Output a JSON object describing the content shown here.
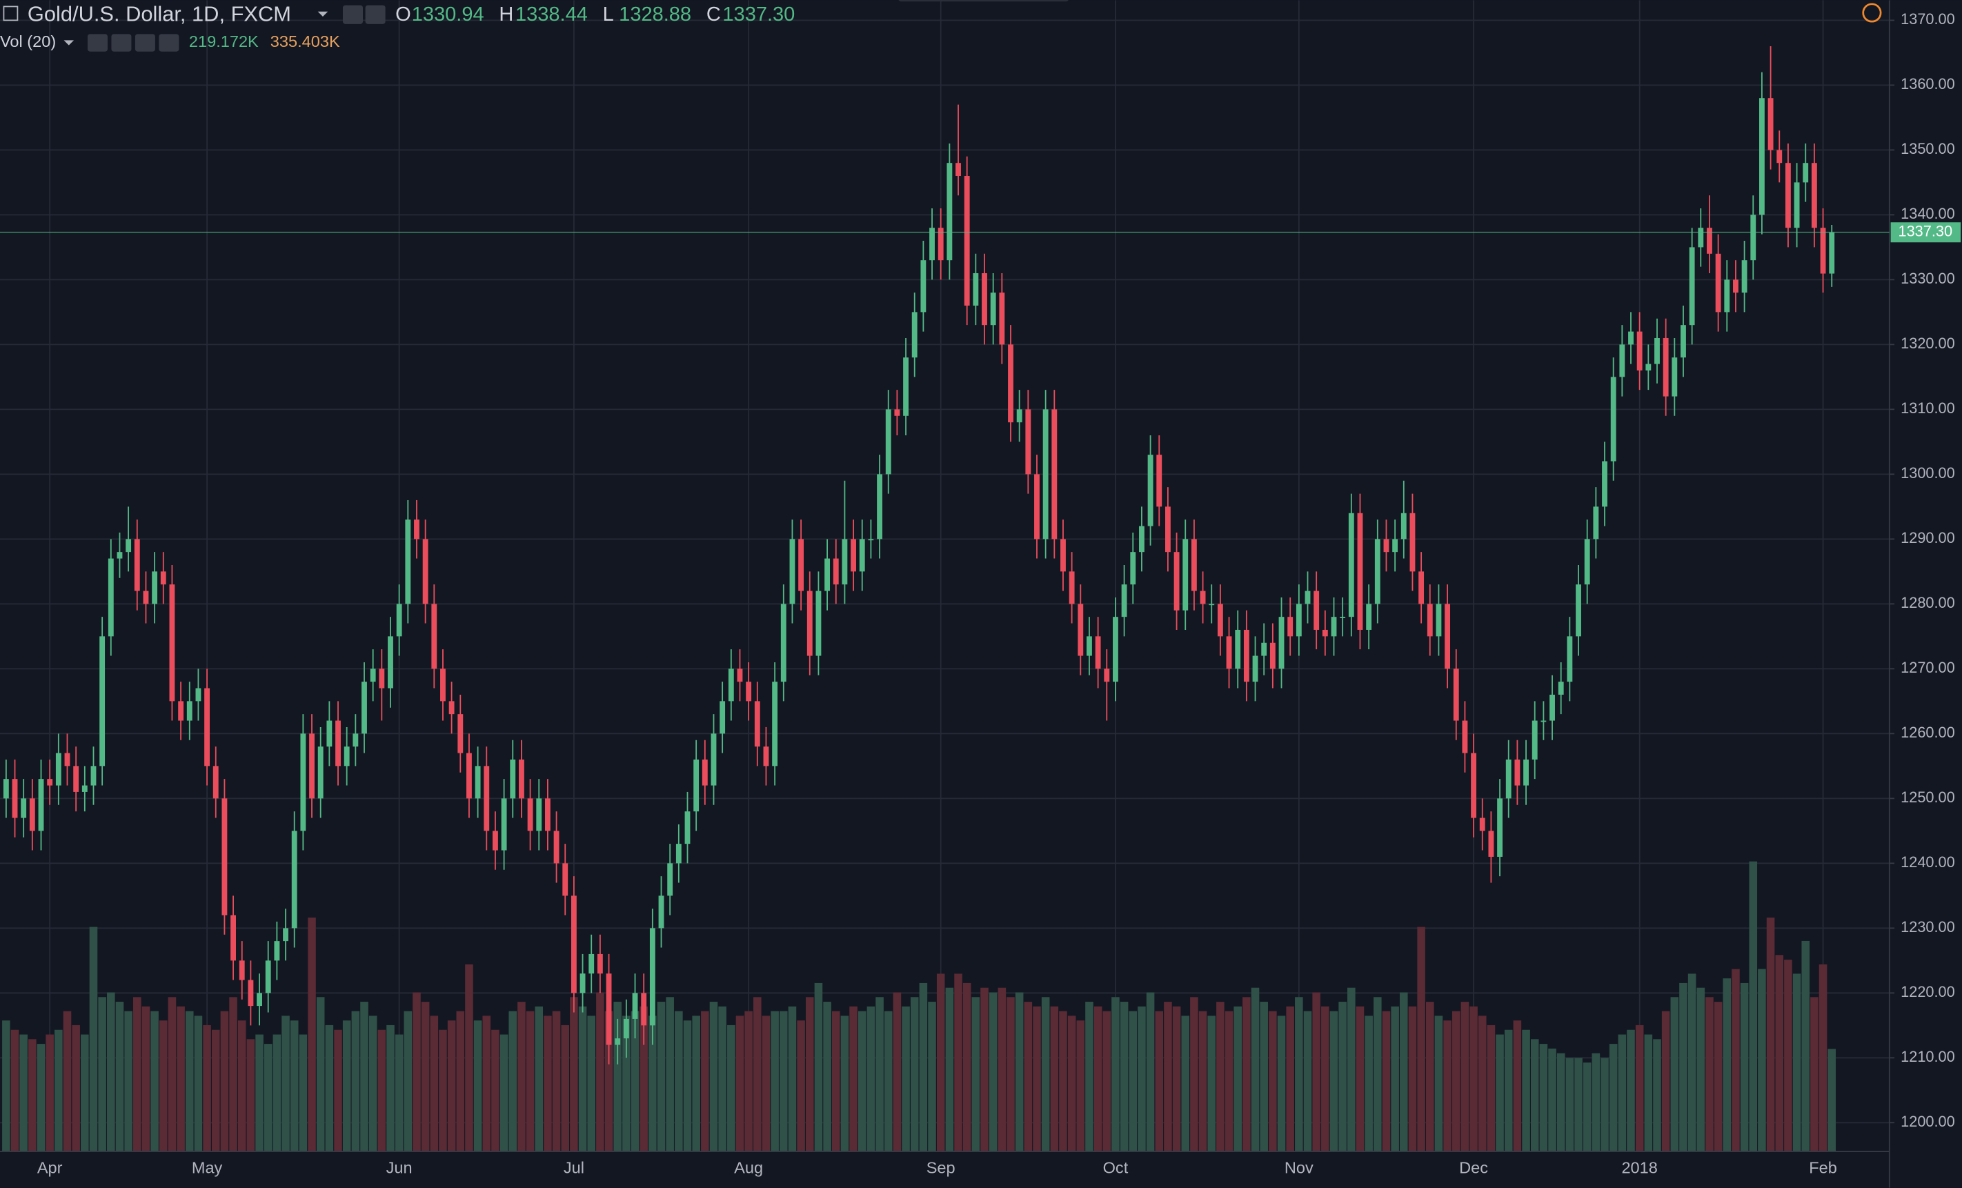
{
  "chart_data": {
    "type": "candlestick",
    "title": "Gold/U.S. Dollar, 1D, FXCM",
    "ohlc_legend": [
      {
        "key": "O",
        "value": "1330.94"
      },
      {
        "key": "H",
        "value": "1338.44"
      },
      {
        "key": "L",
        "value": "1328.88"
      },
      {
        "key": "C",
        "value": "1337.30"
      }
    ],
    "volume_legend": {
      "name": "Vol (20)",
      "value": "219.172K",
      "ma_value": "335.403K"
    },
    "last_price": {
      "value": 1337.3,
      "label": "1337.30"
    },
    "up_color": "#53b987",
    "down_color": "#eb4d5c",
    "volume_up_color": "#2f5148",
    "volume_down_color": "#5a2a35",
    "volume_ma_color": "#e8a15e",
    "xlim": [
      -0.7,
      215.6
    ],
    "xticks": [
      {
        "value": 5,
        "label": "Apr"
      },
      {
        "value": 23,
        "label": "May"
      },
      {
        "value": 45,
        "label": "Jun"
      },
      {
        "value": 65,
        "label": "Jul"
      },
      {
        "value": 85,
        "label": "Aug"
      },
      {
        "value": 107,
        "label": "Sep"
      },
      {
        "value": 127,
        "label": "Oct"
      },
      {
        "value": 148,
        "label": "Nov"
      },
      {
        "value": 168,
        "label": "Dec"
      },
      {
        "value": 187,
        "label": "2018"
      },
      {
        "value": 208,
        "label": "Feb"
      }
    ],
    "ylim": [
      1195.56,
      1373.09
    ],
    "yticks": [
      {
        "value": 1200,
        "label": "1200.00"
      },
      {
        "value": 1210,
        "label": "1210.00"
      },
      {
        "value": 1220,
        "label": "1220.00"
      },
      {
        "value": 1230,
        "label": "1230.00"
      },
      {
        "value": 1240,
        "label": "1240.00"
      },
      {
        "value": 1250,
        "label": "1250.00"
      },
      {
        "value": 1260,
        "label": "1260.00"
      },
      {
        "value": 1270,
        "label": "1270.00"
      },
      {
        "value": 1280,
        "label": "1280.00"
      },
      {
        "value": 1290,
        "label": "1290.00"
      },
      {
        "value": 1300,
        "label": "1300.00"
      },
      {
        "value": 1310,
        "label": "1310.00"
      },
      {
        "value": 1320,
        "label": "1320.00"
      },
      {
        "value": 1330,
        "label": "1330.00"
      },
      {
        "value": 1340,
        "label": "1340.00"
      },
      {
        "value": 1350,
        "label": "1350.00"
      },
      {
        "value": 1360,
        "label": "1360.00"
      },
      {
        "value": 1370,
        "label": "1370.00"
      }
    ],
    "grid": true,
    "open": [
      1250,
      1253,
      1247,
      1250,
      1245,
      1253,
      1252,
      1257,
      1255,
      1251,
      1252,
      1255,
      1275,
      1287,
      1288,
      1290,
      1282,
      1280,
      1285,
      1283,
      1265,
      1262,
      1265,
      1267,
      1255,
      1250,
      1232,
      1225,
      1222,
      1218,
      1220,
      1225,
      1228,
      1230,
      1245,
      1260,
      1250,
      1258,
      1262,
      1255,
      1258,
      1260,
      1268,
      1270,
      1267,
      1275,
      1280,
      1293,
      1290,
      1280,
      1270,
      1265,
      1263,
      1257,
      1250,
      1255,
      1245,
      1242,
      1250,
      1256,
      1250,
      1245,
      1250,
      1245,
      1240,
      1235,
      1220,
      1223,
      1226,
      1223,
      1212,
      1213,
      1216,
      1220,
      1215,
      1230,
      1235,
      1240,
      1243,
      1248,
      1256,
      1252,
      1260,
      1265,
      1270,
      1268,
      1265,
      1258,
      1255,
      1268,
      1280,
      1290,
      1282,
      1272,
      1282,
      1287,
      1283,
      1290,
      1285,
      1290,
      1290,
      1300,
      1310,
      1309,
      1318,
      1325,
      1333,
      1338,
      1333,
      1348,
      1346,
      1326,
      1331,
      1323,
      1328,
      1320,
      1308,
      1310,
      1300,
      1290,
      1310,
      1290,
      1285,
      1280,
      1272,
      1275,
      1270,
      1268,
      1278,
      1283,
      1288,
      1292,
      1303,
      1295,
      1288,
      1279,
      1290,
      1282,
      1280,
      1280,
      1275,
      1270,
      1276,
      1268,
      1272,
      1274,
      1270,
      1278,
      1275,
      1280,
      1282,
      1276,
      1275,
      1278,
      1278,
      1294,
      1276,
      1280,
      1290,
      1288,
      1290,
      1294,
      1285,
      1280,
      1275,
      1280,
      1270,
      1262,
      1257,
      1247,
      1245,
      1241,
      1250,
      1256,
      1252,
      1256,
      1262,
      1262,
      1266,
      1268,
      1275,
      1283,
      1290,
      1295,
      1302,
      1315,
      1320,
      1322,
      1316,
      1317,
      1321,
      1312,
      1318,
      1323,
      1335,
      1338,
      1334,
      1325,
      1330,
      1328,
      1333,
      1340,
      1358,
      1350,
      1348,
      1338,
      1345,
      1348,
      1338,
      1330.94
    ],
    "high": [
      1256,
      1256,
      1253,
      1253,
      1256,
      1256,
      1260,
      1260,
      1258,
      1255,
      1258,
      1278,
      1290,
      1291,
      1295,
      1293,
      1285,
      1288,
      1288,
      1286,
      1268,
      1268,
      1270,
      1270,
      1258,
      1253,
      1235,
      1228,
      1225,
      1223,
      1228,
      1231,
      1233,
      1248,
      1263,
      1263,
      1261,
      1265,
      1265,
      1261,
      1263,
      1271,
      1273,
      1273,
      1278,
      1283,
      1296,
      1296,
      1293,
      1283,
      1273,
      1268,
      1266,
      1260,
      1258,
      1258,
      1248,
      1253,
      1259,
      1259,
      1253,
      1253,
      1253,
      1248,
      1243,
      1238,
      1226,
      1229,
      1229,
      1226,
      1216,
      1219,
      1223,
      1223,
      1233,
      1238,
      1243,
      1246,
      1251,
      1259,
      1259,
      1263,
      1268,
      1273,
      1273,
      1271,
      1268,
      1261,
      1271,
      1283,
      1293,
      1293,
      1285,
      1285,
      1290,
      1290,
      1299,
      1293,
      1293,
      1293,
      1303,
      1313,
      1313,
      1321,
      1328,
      1336,
      1341,
      1341,
      1351,
      1357,
      1349,
      1334,
      1334,
      1331,
      1331,
      1323,
      1313,
      1313,
      1303,
      1313,
      1313,
      1293,
      1288,
      1283,
      1278,
      1278,
      1273,
      1281,
      1286,
      1291,
      1295,
      1306,
      1306,
      1298,
      1291,
      1293,
      1293,
      1285,
      1283,
      1283,
      1278,
      1279,
      1279,
      1275,
      1277,
      1277,
      1281,
      1281,
      1283,
      1285,
      1285,
      1279,
      1281,
      1281,
      1297,
      1297,
      1283,
      1293,
      1293,
      1293,
      1299,
      1297,
      1288,
      1283,
      1283,
      1283,
      1273,
      1265,
      1260,
      1250,
      1248,
      1253,
      1259,
      1259,
      1259,
      1265,
      1265,
      1269,
      1271,
      1278,
      1286,
      1293,
      1298,
      1305,
      1318,
      1323,
      1325,
      1325,
      1320,
      1324,
      1324,
      1321,
      1326,
      1338,
      1341,
      1343,
      1337,
      1333,
      1333,
      1336,
      1343,
      1362,
      1366,
      1353,
      1351,
      1348,
      1351,
      1351,
      1341,
      1338.44
    ],
    "low": [
      1247,
      1244,
      1244,
      1242,
      1242,
      1249,
      1249,
      1252,
      1248,
      1248,
      1249,
      1252,
      1272,
      1284,
      1285,
      1279,
      1277,
      1277,
      1280,
      1262,
      1259,
      1259,
      1262,
      1252,
      1247,
      1229,
      1222,
      1219,
      1215,
      1215,
      1217,
      1222,
      1225,
      1227,
      1242,
      1247,
      1247,
      1255,
      1252,
      1252,
      1255,
      1257,
      1265,
      1262,
      1264,
      1272,
      1277,
      1287,
      1277,
      1267,
      1262,
      1260,
      1254,
      1247,
      1247,
      1242,
      1239,
      1239,
      1247,
      1247,
      1242,
      1242,
      1242,
      1237,
      1232,
      1217,
      1217,
      1220,
      1220,
      1209,
      1209,
      1210,
      1213,
      1212,
      1212,
      1227,
      1232,
      1237,
      1240,
      1245,
      1249,
      1249,
      1257,
      1262,
      1265,
      1262,
      1255,
      1252,
      1252,
      1265,
      1277,
      1279,
      1269,
      1269,
      1279,
      1280,
      1280,
      1282,
      1282,
      1287,
      1287,
      1297,
      1306,
      1306,
      1315,
      1322,
      1330,
      1330,
      1330,
      1343,
      1323,
      1323,
      1320,
      1320,
      1317,
      1305,
      1305,
      1297,
      1287,
      1287,
      1287,
      1282,
      1277,
      1269,
      1269,
      1267,
      1262,
      1265,
      1275,
      1280,
      1285,
      1289,
      1292,
      1285,
      1276,
      1276,
      1279,
      1277,
      1277,
      1272,
      1267,
      1267,
      1265,
      1265,
      1269,
      1267,
      1267,
      1272,
      1272,
      1277,
      1273,
      1272,
      1272,
      1275,
      1275,
      1273,
      1273,
      1277,
      1285,
      1285,
      1287,
      1282,
      1277,
      1272,
      1272,
      1267,
      1259,
      1254,
      1244,
      1242,
      1237,
      1238,
      1247,
      1249,
      1249,
      1253,
      1259,
      1259,
      1263,
      1265,
      1272,
      1280,
      1287,
      1292,
      1299,
      1312,
      1317,
      1313,
      1313,
      1314,
      1309,
      1309,
      1315,
      1320,
      1332,
      1331,
      1322,
      1322,
      1325,
      1325,
      1330,
      1337,
      1347,
      1345,
      1335,
      1335,
      1342,
      1335,
      1328,
      1328.88
    ],
    "close": [
      1253,
      1247,
      1250,
      1245,
      1253,
      1252,
      1257,
      1255,
      1251,
      1252,
      1255,
      1275,
      1287,
      1288,
      1290,
      1282,
      1280,
      1285,
      1283,
      1265,
      1262,
      1265,
      1267,
      1255,
      1250,
      1232,
      1225,
      1222,
      1218,
      1220,
      1225,
      1228,
      1230,
      1245,
      1260,
      1250,
      1258,
      1262,
      1255,
      1258,
      1260,
      1268,
      1270,
      1267,
      1275,
      1280,
      1293,
      1290,
      1280,
      1270,
      1265,
      1263,
      1257,
      1250,
      1255,
      1245,
      1242,
      1250,
      1256,
      1250,
      1245,
      1250,
      1245,
      1240,
      1235,
      1220,
      1223,
      1226,
      1223,
      1212,
      1213,
      1216,
      1220,
      1215,
      1230,
      1235,
      1240,
      1243,
      1248,
      1256,
      1252,
      1260,
      1265,
      1270,
      1268,
      1265,
      1258,
      1255,
      1268,
      1280,
      1290,
      1282,
      1272,
      1282,
      1287,
      1283,
      1290,
      1285,
      1290,
      1290,
      1300,
      1310,
      1309,
      1318,
      1325,
      1333,
      1338,
      1333,
      1348,
      1346,
      1326,
      1331,
      1323,
      1328,
      1320,
      1308,
      1310,
      1300,
      1290,
      1310,
      1290,
      1285,
      1280,
      1272,
      1275,
      1270,
      1268,
      1278,
      1283,
      1288,
      1292,
      1303,
      1295,
      1288,
      1279,
      1290,
      1282,
      1280,
      1280,
      1275,
      1270,
      1276,
      1268,
      1272,
      1274,
      1270,
      1278,
      1275,
      1280,
      1282,
      1276,
      1275,
      1278,
      1278,
      1294,
      1276,
      1280,
      1290,
      1288,
      1290,
      1294,
      1285,
      1280,
      1275,
      1280,
      1270,
      1262,
      1257,
      1247,
      1245,
      1241,
      1250,
      1256,
      1252,
      1256,
      1262,
      1262,
      1266,
      1268,
      1275,
      1283,
      1290,
      1295,
      1302,
      1315,
      1320,
      1322,
      1316,
      1317,
      1321,
      1312,
      1318,
      1323,
      1335,
      1338,
      1334,
      1325,
      1330,
      1328,
      1333,
      1340,
      1358,
      1350,
      1348,
      1338,
      1345,
      1348,
      1338,
      1330.94,
      1337.3
    ],
    "volume": {
      "ylim": [
        0,
        650
      ],
      "values": [
        280,
        260,
        250,
        240,
        230,
        250,
        260,
        300,
        270,
        250,
        480,
        330,
        340,
        320,
        300,
        330,
        310,
        300,
        280,
        330,
        310,
        300,
        290,
        270,
        260,
        300,
        330,
        280,
        240,
        250,
        230,
        250,
        290,
        280,
        250,
        500,
        330,
        270,
        260,
        280,
        300,
        320,
        290,
        260,
        270,
        250,
        300,
        340,
        320,
        290,
        260,
        280,
        300,
        400,
        280,
        290,
        260,
        250,
        300,
        320,
        300,
        310,
        290,
        300,
        270,
        330,
        310,
        290,
        340,
        300,
        320,
        290,
        300,
        310,
        290,
        320,
        330,
        300,
        280,
        290,
        300,
        320,
        310,
        270,
        290,
        300,
        330,
        290,
        300,
        300,
        310,
        280,
        330,
        360,
        320,
        300,
        290,
        310,
        300,
        310,
        330,
        300,
        340,
        310,
        330,
        360,
        320,
        380,
        350,
        380,
        360,
        330,
        350,
        340,
        350,
        330,
        340,
        320,
        310,
        330,
        310,
        300,
        290,
        280,
        320,
        310,
        300,
        330,
        320,
        300,
        310,
        340,
        300,
        320,
        310,
        290,
        330,
        300,
        290,
        320,
        300,
        310,
        330,
        350,
        320,
        300,
        290,
        310,
        330,
        300,
        340,
        310,
        300,
        320,
        350,
        310,
        290,
        330,
        300,
        310,
        340,
        310,
        480,
        320,
        290,
        280,
        300,
        320,
        310,
        290,
        270,
        250,
        260,
        280,
        260,
        240,
        230,
        220,
        210,
        200,
        200,
        190,
        210,
        200,
        230,
        250,
        260,
        270,
        250,
        240,
        300,
        330,
        360,
        380,
        350,
        330,
        320,
        370,
        390,
        360,
        620,
        390,
        500,
        420,
        410,
        380,
        450,
        330,
        400,
        219.172
      ]
    }
  }
}
